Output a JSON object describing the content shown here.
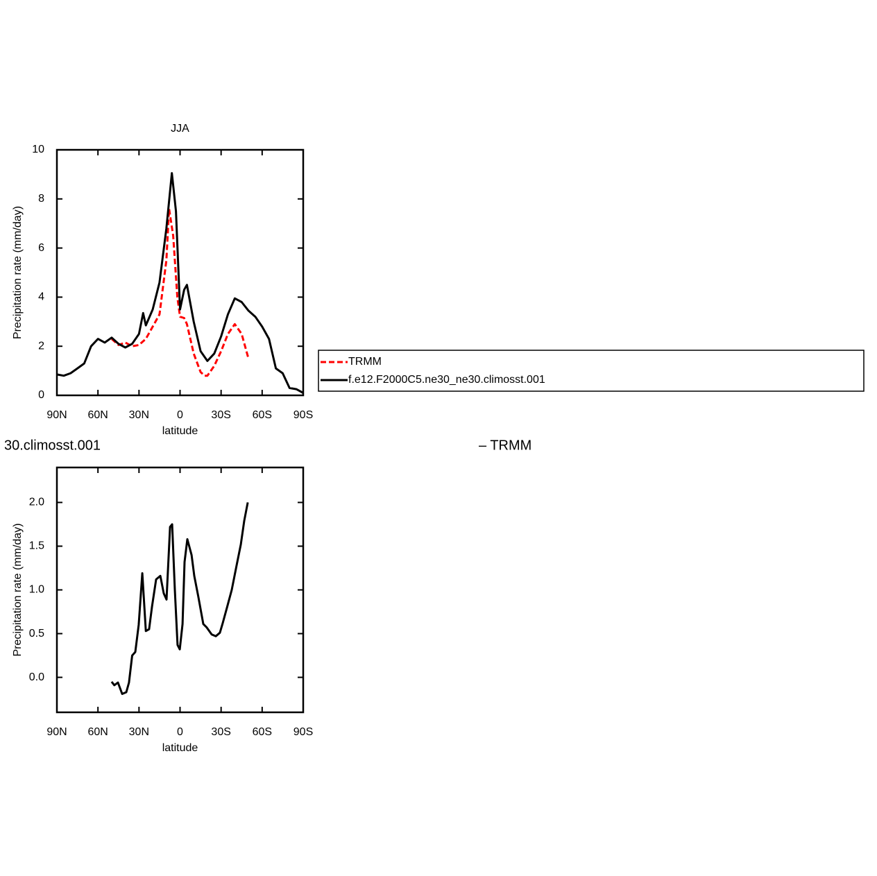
{
  "chart_data": [
    {
      "type": "line",
      "title": "JJA",
      "ylabel": "Precipitation rate (mm/day)",
      "xlabel": "latitude",
      "xlim": [
        90,
        -90
      ],
      "xticks": [
        {
          "value": 90,
          "label": "90N"
        },
        {
          "value": 60,
          "label": "60N"
        },
        {
          "value": 30,
          "label": "30N"
        },
        0,
        {
          "value": -30,
          "label": "30S"
        },
        {
          "value": -60,
          "label": "60S"
        },
        {
          "value": -90,
          "label": "90S"
        }
      ],
      "ylim": [
        0,
        10
      ],
      "yticks": [
        0,
        2,
        4,
        6,
        8,
        10
      ],
      "legend": "outside-right",
      "series": [
        {
          "name": "TRMM",
          "color": "#ff0000",
          "style": "dashed",
          "x": [
            50,
            45,
            40,
            35,
            30,
            25,
            20,
            15,
            10,
            8,
            5,
            2,
            0,
            -3,
            -5,
            -10,
            -15,
            -18,
            -20,
            -25,
            -30,
            -35,
            -40,
            -45,
            -50
          ],
          "values": [
            2.3,
            2.05,
            2.15,
            2.0,
            2.05,
            2.3,
            2.8,
            3.3,
            5.5,
            7.6,
            6.5,
            4.0,
            3.2,
            3.15,
            2.9,
            1.7,
            0.95,
            0.8,
            0.8,
            1.2,
            1.8,
            2.5,
            2.9,
            2.5,
            1.5
          ]
        },
        {
          "name": "f.e12.F2000C5.ne30_ne30.climosst.001",
          "color": "#000000",
          "style": "solid",
          "x": [
            90,
            85,
            80,
            75,
            70,
            65,
            60,
            55,
            50,
            45,
            40,
            35,
            30,
            27,
            25,
            20,
            15,
            10,
            6,
            3,
            0,
            -3,
            -5,
            -10,
            -15,
            -20,
            -25,
            -30,
            -35,
            -40,
            -45,
            -50,
            -55,
            -60,
            -65,
            -70,
            -75,
            -80,
            -85,
            -90
          ],
          "values": [
            0.85,
            0.8,
            0.9,
            1.1,
            1.3,
            2.0,
            2.3,
            2.15,
            2.35,
            2.1,
            1.95,
            2.1,
            2.5,
            3.35,
            2.85,
            3.5,
            4.6,
            6.8,
            9.05,
            7.5,
            3.5,
            4.3,
            4.5,
            3.0,
            1.8,
            1.4,
            1.7,
            2.4,
            3.3,
            3.95,
            3.8,
            3.45,
            3.2,
            2.8,
            2.3,
            1.1,
            0.9,
            0.3,
            0.25,
            0.1
          ]
        }
      ]
    },
    {
      "type": "line",
      "subtitle_left": "30.climosst.001",
      "subtitle_right": "– TRMM",
      "ylabel": "Precipitation rate (mm/day)",
      "xlabel": "latitude",
      "xlim": [
        90,
        -90
      ],
      "xticks": [
        {
          "value": 90,
          "label": "90N"
        },
        {
          "value": 60,
          "label": "60N"
        },
        {
          "value": 30,
          "label": "30N"
        },
        0,
        {
          "value": -30,
          "label": "30S"
        },
        {
          "value": -60,
          "label": "60S"
        },
        {
          "value": -90,
          "label": "90S"
        }
      ],
      "ylim": [
        -0.4,
        2.4
      ],
      "yticks": [
        {
          "value": 0,
          "label": "0.0"
        },
        0.5,
        {
          "value": 1,
          "label": "1.0"
        },
        1.5,
        {
          "value": 2,
          "label": "2.0"
        }
      ],
      "series": [
        {
          "color": "#000000",
          "style": "solid",
          "x": [
            50,
            48,
            45.4,
            42.3,
            39.3,
            37.3,
            35,
            32.7,
            30.2,
            27.6,
            25,
            22.6,
            20.5,
            17.5,
            14.4,
            11.9,
            9.9,
            7.3,
            5.8,
            3.8,
            1.8,
            0.2,
            -1.8,
            -3.3,
            -5.3,
            -8.4,
            -10.4,
            -13.4,
            -17,
            -19.5,
            -23.1,
            -26.1,
            -29.1,
            -31.2,
            -34.7,
            -37.8,
            -41.3,
            -44.4,
            -46.9,
            -49.5
          ],
          "values": [
            -0.05,
            -0.09,
            -0.06,
            -0.19,
            -0.17,
            -0.06,
            0.25,
            0.29,
            0.6,
            1.19,
            0.53,
            0.55,
            0.81,
            1.12,
            1.16,
            0.96,
            0.89,
            1.72,
            1.75,
            1.0,
            0.37,
            0.32,
            0.61,
            1.32,
            1.58,
            1.4,
            1.16,
            0.92,
            0.61,
            0.57,
            0.49,
            0.47,
            0.51,
            0.62,
            0.82,
            1.0,
            1.28,
            1.52,
            1.79,
            2.0
          ]
        }
      ]
    }
  ]
}
